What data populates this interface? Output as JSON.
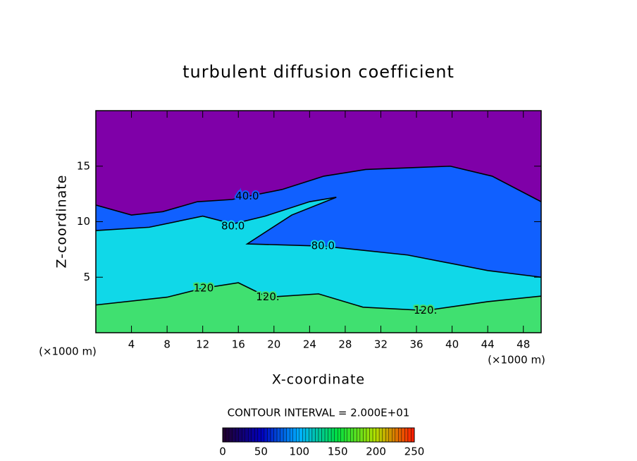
{
  "chart_data": {
    "type": "contour",
    "title": "turbulent diffusion coefficient",
    "x_label": "X-coordinate",
    "y_label": "Z-coordinate",
    "x_unit": "(×1000 m)",
    "xlim": [
      0,
      50
    ],
    "xticks": [
      4,
      8,
      12,
      16,
      20,
      24,
      28,
      32,
      36,
      40,
      44,
      48
    ],
    "ylim": [
      0,
      20
    ],
    "yticks": [
      5,
      10,
      15
    ],
    "background_color": "#7f00a8",
    "contour_interval_label": "CONTOUR INTERVAL = 2.000E+01",
    "contours": [
      {
        "level": 40,
        "color": "#1060ff",
        "x": [
          0,
          4,
          7.5,
          11.4,
          15.3,
          20.9,
          25.6,
          30.3,
          36.6,
          39.8,
          44.5,
          50
        ],
        "z": [
          11.5,
          10.6,
          10.9,
          11.8,
          12.0,
          12.9,
          14.1,
          14.7,
          14.9,
          15.0,
          14.1,
          11.8
        ],
        "labels": [
          {
            "x": 17,
            "z": 12.3,
            "text": "40.0"
          }
        ]
      },
      {
        "level": 80,
        "color": "#10d8e8",
        "x": [
          0,
          6,
          12,
          15.4,
          19,
          24,
          27,
          22,
          17,
          25.5,
          35,
          44,
          50
        ],
        "z": [
          9.2,
          9.5,
          10.5,
          9.8,
          10.5,
          11.8,
          12.2,
          10.6,
          8.0,
          7.8,
          7.0,
          5.6,
          5.0
        ],
        "labels": [
          {
            "x": 15.4,
            "z": 9.6,
            "text": "80.0"
          },
          {
            "x": 25.5,
            "z": 7.8,
            "text": "80.0"
          }
        ]
      },
      {
        "level": 120,
        "color": "#40e070",
        "x": [
          0,
          8,
          12,
          16,
          19.3,
          25,
          30,
          37,
          44,
          50
        ],
        "z": [
          2.5,
          3.2,
          4.0,
          4.5,
          3.2,
          3.5,
          2.3,
          2.0,
          2.8,
          3.3
        ],
        "labels": [
          {
            "x": 12.1,
            "z": 4.0,
            "text": "120"
          },
          {
            "x": 19.3,
            "z": 3.2,
            "text": "120."
          },
          {
            "x": 37,
            "z": 2.0,
            "text": "120."
          }
        ]
      }
    ],
    "colorbar": {
      "lim": [
        0,
        250
      ],
      "ticks": [
        0,
        50,
        100,
        150,
        200,
        250
      ],
      "colors": [
        "#200030",
        "#0000c0",
        "#00b0ff",
        "#00e040",
        "#b0e000",
        "#ff2000"
      ]
    }
  }
}
